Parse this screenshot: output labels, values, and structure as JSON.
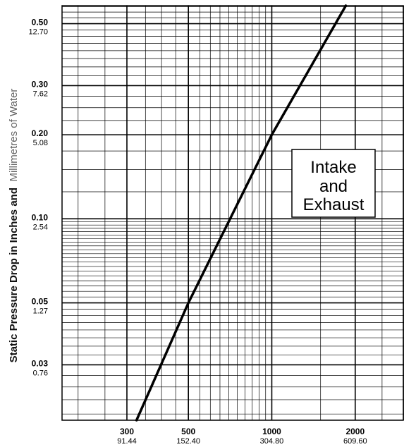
{
  "chart_data": {
    "type": "line",
    "scale": "log-log",
    "grid": true,
    "ylabel_bold": "Static Pressure Drop in Inches and",
    "ylabel_light": "Millimetres of Water",
    "xlim": [
      175,
      3000
    ],
    "ylim": [
      0.019,
      0.58
    ],
    "x_ticks": [
      {
        "value": 300,
        "label": "300",
        "sublabel": "91.44"
      },
      {
        "value": 500,
        "label": "500",
        "sublabel": "152.40"
      },
      {
        "value": 1000,
        "label": "1000",
        "sublabel": "304.80"
      },
      {
        "value": 2000,
        "label": "2000",
        "sublabel": "609.60"
      }
    ],
    "y_ticks": [
      {
        "value": 0.5,
        "label": "0.50",
        "sublabel": "12.70"
      },
      {
        "value": 0.3,
        "label": "0.30",
        "sublabel": "7.62"
      },
      {
        "value": 0.2,
        "label": "0.20",
        "sublabel": "5.08"
      },
      {
        "value": 0.1,
        "label": "0.10",
        "sublabel": "2.54"
      },
      {
        "value": 0.05,
        "label": "0.05",
        "sublabel": "1.27"
      },
      {
        "value": 0.03,
        "label": "0.03",
        "sublabel": "0.76"
      }
    ],
    "series": [
      {
        "x": [
          325,
          500,
          1000,
          1850
        ],
        "y": [
          0.019,
          0.05,
          0.2,
          0.58
        ],
        "color": "#000000"
      }
    ],
    "annotation": {
      "lines": [
        "Intake",
        "and",
        "Exhaust"
      ],
      "position": "right-middle"
    }
  }
}
